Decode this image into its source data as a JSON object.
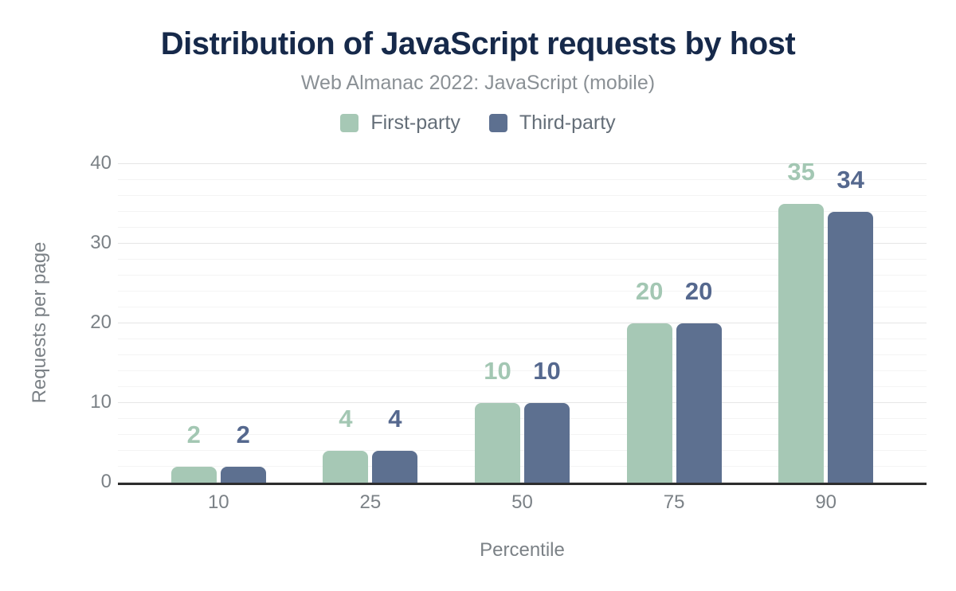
{
  "title": "Distribution of JavaScript requests by host",
  "subtitle": "Web Almanac 2022: JavaScript (mobile)",
  "colors": {
    "background": "#ffffff",
    "title": "#16294a",
    "subtitle": "#8a9095",
    "legend-text": "#646e78",
    "tick-text": "#7b8186",
    "axis-title-text": "#7b8186",
    "axis-line": "#2d2d2d",
    "grid-major": "#e6e6e6",
    "grid-minor": "#f4f4f4",
    "first-party": "#a6c8b5",
    "third-party": "#5d7090"
  },
  "chart_data": {
    "type": "bar",
    "categories": [
      "10",
      "25",
      "50",
      "75",
      "90"
    ],
    "series": [
      {
        "name": "First-party",
        "color": "#a6c8b5",
        "label_color": "#a3c7b3",
        "values": [
          2,
          4,
          10,
          20,
          35
        ]
      },
      {
        "name": "Third-party",
        "color": "#5d7090",
        "label_color": "#55688e",
        "values": [
          2,
          4,
          10,
          20,
          34
        ]
      }
    ],
    "title": "Distribution of JavaScript requests by host",
    "subtitle": "Web Almanac 2022: JavaScript (mobile)",
    "xlabel": "Percentile",
    "ylabel": "Requests per page",
    "ylim": [
      0,
      40
    ],
    "yticks": [
      0,
      10,
      20,
      30,
      40
    ],
    "grid": "horizontal; minor every 2, major every 10",
    "legend_position": "top",
    "value_labels": "above bars"
  }
}
